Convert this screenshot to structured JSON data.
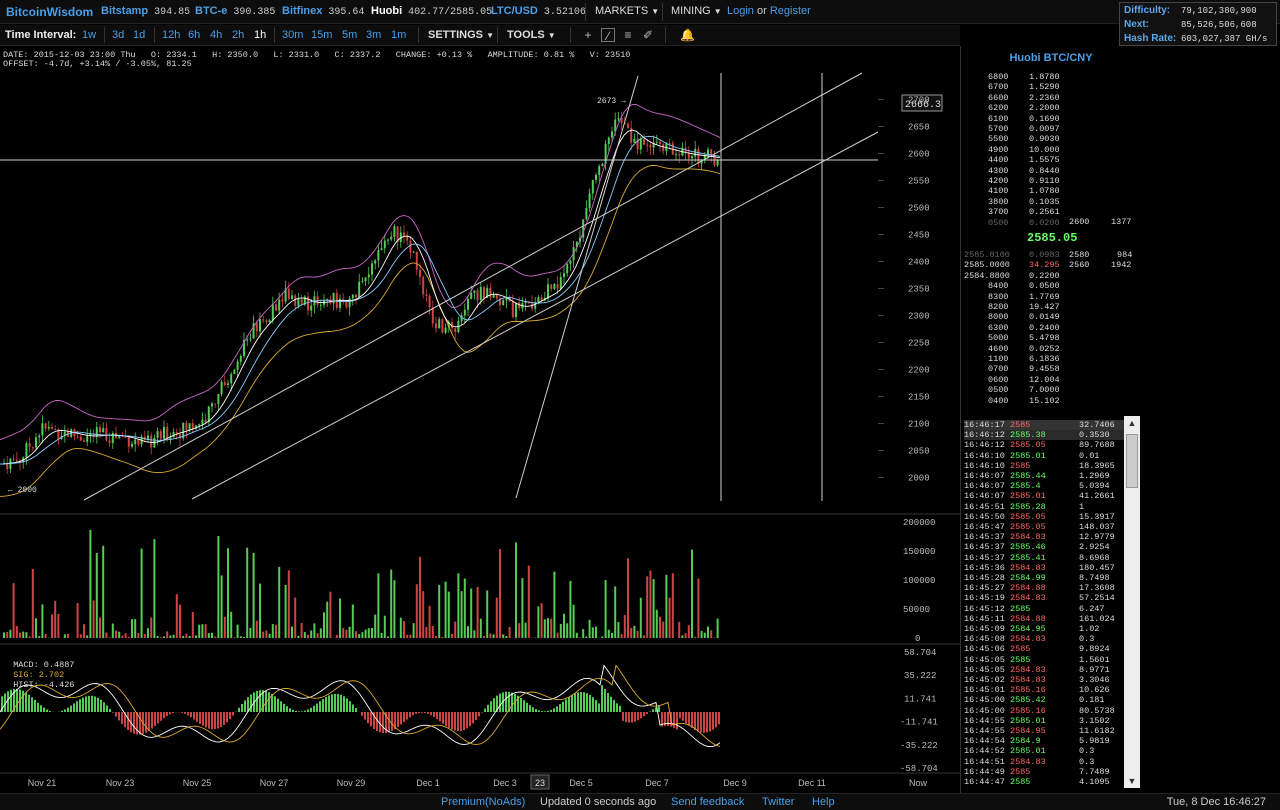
{
  "brand": "BitcoinWisdom",
  "markets": [
    {
      "name": "Bitstamp",
      "price": "394.85"
    },
    {
      "name": "BTC-e",
      "price": "390.385"
    },
    {
      "name": "Bitfinex",
      "price": "395.64"
    },
    {
      "name": "Huobi",
      "price": "402.77/2585.05"
    },
    {
      "name": "LTC/USD",
      "price": "3.52106"
    }
  ],
  "menus": {
    "markets": "MARKETS",
    "mining": "MINING",
    "login": "Login",
    "or": "or",
    "register": "Register"
  },
  "stats": {
    "difficulty_label": "Difficulty:",
    "difficulty": "79,102,380,900",
    "next_label": "Next:",
    "next": "85,526,506,608",
    "hashrate_label": "Hash Rate:",
    "hashrate": "603,027,387 GH/s"
  },
  "toolbar": {
    "interval_label": "Time Interval:",
    "intervals": [
      "1w",
      "3d",
      "1d",
      "12h",
      "6h",
      "4h",
      "2h",
      "1h",
      "30m",
      "15m",
      "5m",
      "3m",
      "1m"
    ],
    "settings": "SETTINGS",
    "tools": "TOOLS"
  },
  "chart_info": {
    "line1": "DATE: 2015-12-03 23:00 Thu   O: 2334.1   H: 2350.0   L: 2331.0   C: 2337.2   CHANGE: +0.13 %   AMPLITUDE: 0.81 %   V: 23510",
    "line2": "OFFSET: -4.7d, +3.14% / -3.05%, 81.25",
    "macd_label": "MACD: 0.4887",
    "sig_label": "SIG: 2.702",
    "hist_label": "HIST: -4.426",
    "price_marker": "2666.3",
    "high_marker": "2673",
    "low_marker": "2000",
    "date_tooltip": "23"
  },
  "chart_data": {
    "type": "candlestick",
    "price_axis": [
      "2700",
      "2650",
      "2600",
      "2550",
      "2500",
      "2450",
      "2400",
      "2350",
      "2300",
      "2250",
      "2200",
      "2150",
      "2100",
      "2050",
      "2000"
    ],
    "volume_axis": [
      "200000",
      "150000",
      "100000",
      "50000",
      "0"
    ],
    "macd_axis": [
      "58.704",
      "35.222",
      "11.741",
      "-11.741",
      "-35.222",
      "-58.704"
    ],
    "x_labels": [
      "Nov 21",
      "Nov 23",
      "Nov 25",
      "Nov 27",
      "Nov 29",
      "Dec 1",
      "Dec 3",
      "Dec 5",
      "Dec 7",
      "Dec 9",
      "Dec 11",
      "Now"
    ],
    "ylim": [
      1975,
      2725
    ],
    "close_path": [
      2025,
      2035,
      2090,
      2085,
      2075,
      2080,
      2075,
      2060,
      2080,
      2090,
      2110,
      2180,
      2260,
      2300,
      2340,
      2320,
      2330,
      2325,
      2380,
      2460,
      2430,
      2290,
      2270,
      2340,
      2340,
      2310,
      2330,
      2350,
      2430,
      2560,
      2660,
      2620,
      2610,
      2600,
      2595,
      2590
    ]
  },
  "orderbook": {
    "title": "Huobi BTC/CNY",
    "last": "2585.05",
    "asks": [
      [
        "6800",
        "1.8780"
      ],
      [
        "6700",
        "1.5290"
      ],
      [
        "6600",
        "2.2360"
      ],
      [
        "6200",
        "2.2000"
      ],
      [
        "6100",
        "0.1690"
      ],
      [
        "5700",
        "0.0097"
      ],
      [
        "5500",
        "0.9030"
      ],
      [
        "4900",
        "10.000"
      ],
      [
        "4400",
        "1.5575"
      ],
      [
        "4300",
        "0.8440"
      ],
      [
        "4200",
        "0.9110"
      ],
      [
        "4100",
        "1.0780"
      ],
      [
        "3800",
        "0.1035"
      ],
      [
        "3700",
        "0.2561"
      ],
      [
        "0500",
        "0.0200"
      ]
    ],
    "sum_asks": [
      [
        "2600",
        "1377"
      ]
    ],
    "bids": [
      [
        "2585.0100",
        "0.0983"
      ],
      [
        "2585.0000",
        "34.295"
      ],
      [
        "2584.8800",
        "0.2200"
      ],
      [
        "8400",
        "0.0500"
      ],
      [
        "8300",
        "1.7769"
      ],
      [
        "8200",
        "19.427"
      ],
      [
        "8000",
        "0.0149"
      ],
      [
        "6300",
        "0.2400"
      ],
      [
        "5000",
        "5.4798"
      ],
      [
        "4600",
        "0.0252"
      ],
      [
        "1100",
        "6.1836"
      ],
      [
        "0700",
        "9.4558"
      ],
      [
        "0600",
        "12.004"
      ],
      [
        "0500",
        "7.0000"
      ],
      [
        "0400",
        "15.102"
      ]
    ],
    "sum_bids": [
      [
        "2580",
        "984"
      ],
      [
        "2560",
        "1942"
      ]
    ]
  },
  "trades": [
    [
      "16:46:17",
      "2585",
      "32.7406",
      "r"
    ],
    [
      "16:46:12",
      "2585.38",
      "0.3530",
      "g"
    ],
    [
      "16:46:12",
      "2585.05",
      "89.7688",
      "r"
    ],
    [
      "16:46:10",
      "2585.01",
      "0.01",
      "g"
    ],
    [
      "16:46:10",
      "2585",
      "18.3965",
      "r"
    ],
    [
      "16:46:07",
      "2585.44",
      "1.2969",
      "g"
    ],
    [
      "16:46:07",
      "2585.4",
      "5.0394",
      "g"
    ],
    [
      "16:46:07",
      "2585.01",
      "41.2661",
      "r"
    ],
    [
      "16:45:51",
      "2585.28",
      "1",
      "g"
    ],
    [
      "16:45:50",
      "2585.05",
      "15.3917",
      "r"
    ],
    [
      "16:45:47",
      "2585.05",
      "148.037",
      "r"
    ],
    [
      "16:45:37",
      "2584.83",
      "12.9779",
      "r"
    ],
    [
      "16:45:37",
      "2585.46",
      "2.9254",
      "g"
    ],
    [
      "16:45:37",
      "2585.41",
      "8.6968",
      "g"
    ],
    [
      "16:45:36",
      "2584.83",
      "180.457",
      "r"
    ],
    [
      "16:45:28",
      "2584.99",
      "8.7498",
      "g"
    ],
    [
      "16:45:27",
      "2584.88",
      "17.3608",
      "r"
    ],
    [
      "16:45:19",
      "2584.83",
      "57.2514",
      "r"
    ],
    [
      "16:45:12",
      "2585",
      "6.247",
      "g"
    ],
    [
      "16:45:11",
      "2584.88",
      "161.024",
      "r"
    ],
    [
      "16:45:09",
      "2584.95",
      "1.02",
      "g"
    ],
    [
      "16:45:08",
      "2584.83",
      "0.3",
      "r"
    ],
    [
      "16:45:06",
      "2585",
      "9.8924",
      "r"
    ],
    [
      "16:45:05",
      "2585",
      "1.5601",
      "g"
    ],
    [
      "16:45:05",
      "2584.83",
      "8.9771",
      "r"
    ],
    [
      "16:45:02",
      "2584.83",
      "3.3046",
      "r"
    ],
    [
      "16:45:01",
      "2585.16",
      "10.626",
      "r"
    ],
    [
      "16:45:00",
      "2585.42",
      "0.181",
      "g"
    ],
    [
      "16:45:00",
      "2585.16",
      "80.5738",
      "r"
    ],
    [
      "16:44:55",
      "2585.01",
      "3.1502",
      "g"
    ],
    [
      "16:44:55",
      "2584.95",
      "11.6182",
      "r"
    ],
    [
      "16:44:54",
      "2584.9",
      "5.9819",
      "g"
    ],
    [
      "16:44:52",
      "2585.01",
      "0.3",
      "g"
    ],
    [
      "16:44:51",
      "2584.83",
      "0.3",
      "r"
    ],
    [
      "16:44:49",
      "2585",
      "7.7489",
      "r"
    ],
    [
      "16:44:47",
      "2585",
      "4.1095",
      "g"
    ]
  ],
  "footer": {
    "premium": "Premium(NoAds)",
    "updated": "Updated 0 seconds ago",
    "feedback": "Send feedback",
    "twitter": "Twitter",
    "help": "Help",
    "clock": "Tue, 8 Dec 16:46:27"
  },
  "colors": {
    "up": "#55cc55",
    "down": "#cc4444",
    "accent": "#4a9fe8",
    "boll": "#cc66cc"
  }
}
